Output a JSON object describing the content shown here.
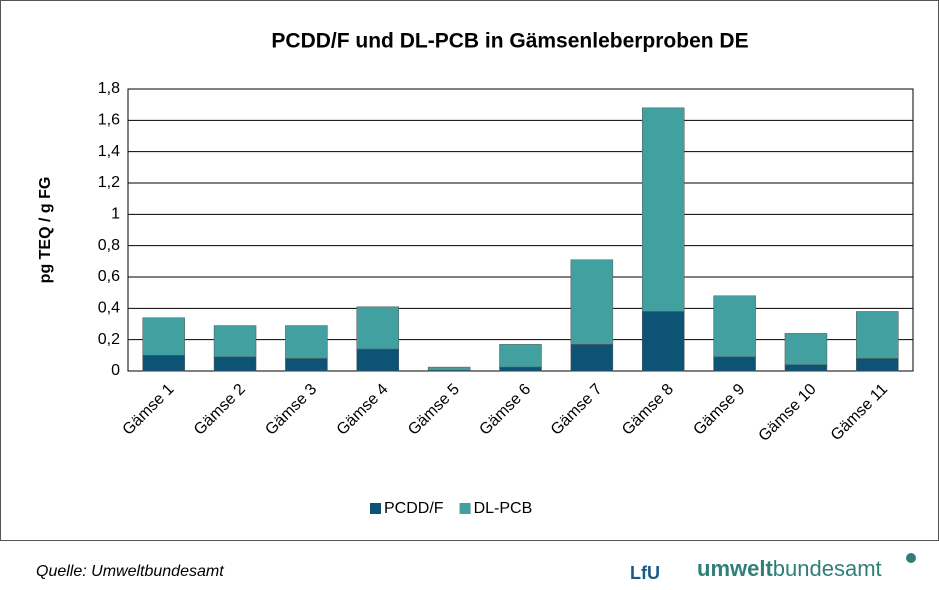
{
  "chart_data": {
    "type": "stacked_bar",
    "title": "PCDD/F und DL-PCB in Gämsenleberproben DE",
    "y_label": "pg TEQ / g FG",
    "categories": [
      "Gämse 1",
      "Gämse 2",
      "Gämse 3",
      "Gämse 4",
      "Gämse 5",
      "Gämse 6",
      "Gämse 7",
      "Gämse 8",
      "Gämse 9",
      "Gämse 10",
      "Gämse 11"
    ],
    "series": [
      {
        "name": "PCDD/F",
        "color": "#0d5375",
        "values": [
          0.1,
          0.09,
          0.08,
          0.14,
          0.005,
          0.025,
          0.17,
          0.38,
          0.09,
          0.04,
          0.08
        ]
      },
      {
        "name": "DL-PCB",
        "color": "#43a0a0",
        "values": [
          0.24,
          0.2,
          0.21,
          0.27,
          0.02,
          0.145,
          0.54,
          1.3,
          0.39,
          0.2,
          0.3
        ]
      }
    ],
    "ylim": [
      0,
      1.8
    ],
    "yticks": [
      0,
      {
        "value": 0.2,
        "label": "0,2"
      },
      {
        "value": 0.4,
        "label": "0,4"
      },
      {
        "value": 0.6,
        "label": "0,6"
      },
      {
        "value": 0.8,
        "label": "0,8"
      },
      1,
      {
        "value": 1.2,
        "label": "1,2"
      },
      {
        "value": 1.4,
        "label": "1,4"
      },
      {
        "value": 1.6,
        "label": "1,6"
      },
      {
        "value": 1.8,
        "label": "1,8"
      }
    ],
    "grid": true,
    "legend": "bottom"
  },
  "footer": {
    "source": "Quelle: Umweltbundesamt",
    "logo_lfu": "LfU",
    "logo_uba_bold": "umwelt",
    "logo_uba_rest": "bundesamt"
  }
}
